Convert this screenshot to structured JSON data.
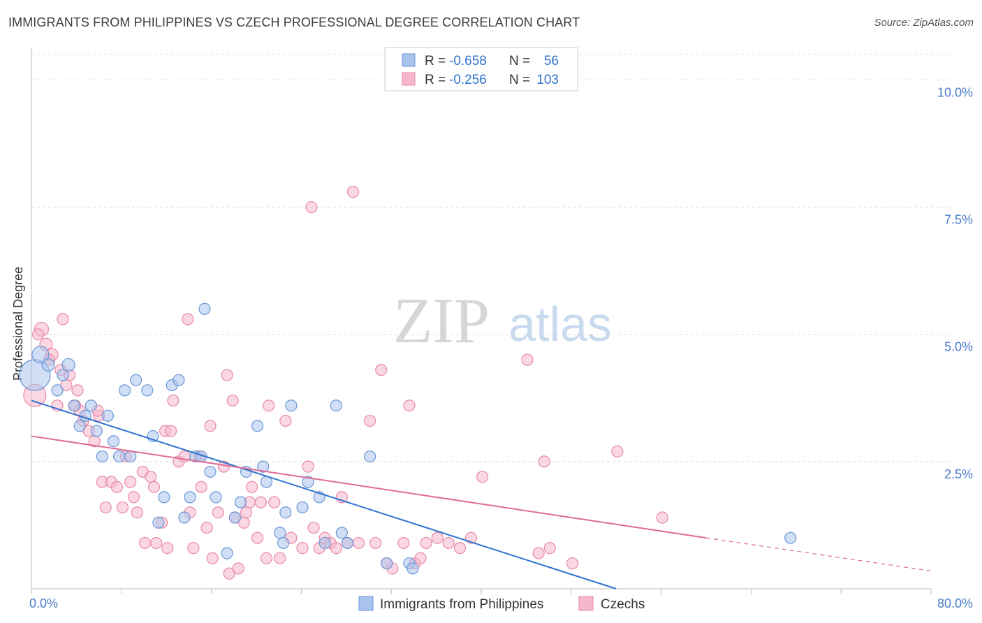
{
  "title": "IMMIGRANTS FROM PHILIPPINES VS CZECH PROFESSIONAL DEGREE CORRELATION CHART",
  "source": "Source: ZipAtlas.com",
  "watermark": {
    "zip": "ZIP",
    "atlas": "atlas"
  },
  "colors": {
    "blue_fill": "#a9c4ec",
    "blue_stroke": "#6b96d6",
    "blue_line": "#2f72d0",
    "pink_fill": "#f5b7ca",
    "pink_stroke": "#e88aa7",
    "pink_line": "#e06a93",
    "axis_text": "#4a7cc9",
    "grid": "#dddddd"
  },
  "legend": {
    "rows": [
      {
        "r_label": "R = ",
        "r_value": "-0.658",
        "n_label": "N = ",
        "n_value": " 56"
      },
      {
        "r_label": "R = ",
        "r_value": "-0.256",
        "n_label": "N = ",
        "n_value": "103"
      }
    ]
  },
  "chart_data": {
    "type": "scatter",
    "ylabel": "Professional Degree",
    "xlim": [
      0,
      80
    ],
    "ylim": [
      0,
      10.5
    ],
    "x_tick_labels": [
      "0.0%",
      "80.0%"
    ],
    "y_ticks": [
      2.5,
      5.0,
      7.5,
      10.0
    ],
    "y_tick_labels": [
      "2.5%",
      "5.0%",
      "7.5%",
      "10.0%"
    ],
    "grid": true,
    "legend_position": "top-center",
    "series": [
      {
        "name": "Immigrants from Philippines",
        "color": "blue",
        "trend": {
          "x0": 0,
          "y0": 3.7,
          "x1": 52,
          "y1": 0.0
        },
        "points": [
          [
            0.3,
            4.2,
            22
          ],
          [
            0.8,
            4.6,
            12
          ],
          [
            1.5,
            4.4,
            9
          ],
          [
            2.3,
            3.9,
            8
          ],
          [
            2.8,
            4.2,
            8
          ],
          [
            3.3,
            4.4,
            9
          ],
          [
            3.8,
            3.6,
            8
          ],
          [
            4.3,
            3.2,
            8
          ],
          [
            4.8,
            3.4,
            8
          ],
          [
            5.3,
            3.6,
            8
          ],
          [
            5.8,
            3.1,
            8
          ],
          [
            6.3,
            2.6,
            8
          ],
          [
            6.8,
            3.4,
            8
          ],
          [
            7.3,
            2.9,
            8
          ],
          [
            7.8,
            2.6,
            8
          ],
          [
            8.3,
            3.9,
            8
          ],
          [
            8.8,
            2.6,
            8
          ],
          [
            9.3,
            4.1,
            8
          ],
          [
            10.3,
            3.9,
            8
          ],
          [
            10.8,
            3.0,
            8
          ],
          [
            11.3,
            1.3,
            8
          ],
          [
            11.8,
            1.8,
            8
          ],
          [
            12.5,
            4.0,
            8
          ],
          [
            13.1,
            4.1,
            8
          ],
          [
            13.6,
            1.4,
            8
          ],
          [
            14.1,
            1.8,
            8
          ],
          [
            14.6,
            2.6,
            8
          ],
          [
            15.1,
            2.6,
            8
          ],
          [
            15.4,
            5.5,
            8
          ],
          [
            15.9,
            2.3,
            8
          ],
          [
            16.4,
            1.8,
            8
          ],
          [
            17.4,
            0.7,
            8
          ],
          [
            18.1,
            1.4,
            8
          ],
          [
            18.6,
            1.7,
            8
          ],
          [
            19.1,
            2.3,
            8
          ],
          [
            20.1,
            3.2,
            8
          ],
          [
            20.6,
            2.4,
            8
          ],
          [
            20.9,
            2.1,
            8
          ],
          [
            22.1,
            1.1,
            8
          ],
          [
            22.4,
            0.9,
            8
          ],
          [
            22.6,
            1.5,
            8
          ],
          [
            23.1,
            3.6,
            8
          ],
          [
            24.1,
            1.6,
            8
          ],
          [
            24.6,
            2.1,
            8
          ],
          [
            25.6,
            1.8,
            8
          ],
          [
            26.1,
            0.9,
            8
          ],
          [
            27.1,
            3.6,
            8
          ],
          [
            27.6,
            1.1,
            8
          ],
          [
            28.1,
            0.9,
            8
          ],
          [
            30.1,
            2.6,
            8
          ],
          [
            31.6,
            0.5,
            8
          ],
          [
            33.6,
            0.5,
            8
          ],
          [
            33.9,
            0.4,
            8
          ],
          [
            67.5,
            1.0,
            8
          ]
        ]
      },
      {
        "name": "Czechs",
        "color": "pink",
        "trend": {
          "x0": 0,
          "y0": 3.0,
          "x1": 60,
          "y1": 1.0,
          "dash_to_x": 80,
          "dash_to_y": 0.35
        },
        "points": [
          [
            0.3,
            3.8,
            16
          ],
          [
            0.9,
            5.1,
            10
          ],
          [
            1.3,
            4.8,
            9
          ],
          [
            1.8,
            4.6,
            9
          ],
          [
            2.3,
            3.6,
            8
          ],
          [
            2.8,
            5.3,
            8
          ],
          [
            3.1,
            4.0,
            8
          ],
          [
            3.4,
            4.2,
            8
          ],
          [
            3.9,
            3.6,
            8
          ],
          [
            4.3,
            3.5,
            8
          ],
          [
            4.6,
            3.3,
            8
          ],
          [
            5.1,
            3.1,
            8
          ],
          [
            5.6,
            2.9,
            8
          ],
          [
            6.0,
            3.4,
            8
          ],
          [
            6.3,
            2.1,
            8
          ],
          [
            6.6,
            1.6,
            8
          ],
          [
            7.1,
            2.1,
            8
          ],
          [
            7.6,
            2.0,
            8
          ],
          [
            8.1,
            1.6,
            8
          ],
          [
            8.4,
            2.6,
            8
          ],
          [
            8.8,
            2.1,
            8
          ],
          [
            9.1,
            1.8,
            8
          ],
          [
            9.4,
            1.5,
            8
          ],
          [
            9.9,
            2.3,
            8
          ],
          [
            10.1,
            0.9,
            8
          ],
          [
            10.6,
            2.2,
            8
          ],
          [
            10.9,
            2.0,
            8
          ],
          [
            11.1,
            0.9,
            8
          ],
          [
            11.6,
            1.3,
            8
          ],
          [
            11.9,
            3.1,
            8
          ],
          [
            12.1,
            0.8,
            8
          ],
          [
            12.4,
            3.1,
            8
          ],
          [
            12.6,
            3.7,
            8
          ],
          [
            13.1,
            2.5,
            8
          ],
          [
            13.6,
            2.6,
            8
          ],
          [
            13.9,
            5.3,
            8
          ],
          [
            14.1,
            1.5,
            8
          ],
          [
            14.4,
            0.8,
            8
          ],
          [
            14.9,
            2.6,
            8
          ],
          [
            15.1,
            2.0,
            8
          ],
          [
            15.6,
            1.2,
            8
          ],
          [
            15.9,
            3.2,
            8
          ],
          [
            16.1,
            0.6,
            8
          ],
          [
            16.6,
            1.5,
            8
          ],
          [
            17.1,
            2.4,
            8
          ],
          [
            17.4,
            4.2,
            8
          ],
          [
            17.6,
            0.3,
            8
          ],
          [
            17.9,
            3.7,
            8
          ],
          [
            18.1,
            1.4,
            8
          ],
          [
            18.4,
            0.4,
            8
          ],
          [
            18.9,
            1.3,
            8
          ],
          [
            19.1,
            1.5,
            8
          ],
          [
            19.4,
            1.7,
            8
          ],
          [
            19.6,
            2.0,
            8
          ],
          [
            20.1,
            1.0,
            8
          ],
          [
            20.4,
            1.7,
            8
          ],
          [
            20.9,
            0.6,
            8
          ],
          [
            21.1,
            3.6,
            8
          ],
          [
            21.6,
            1.7,
            8
          ],
          [
            22.1,
            0.6,
            8
          ],
          [
            22.6,
            3.3,
            8
          ],
          [
            23.1,
            1.0,
            8
          ],
          [
            24.1,
            0.8,
            8
          ],
          [
            24.6,
            2.4,
            8
          ],
          [
            24.9,
            7.5,
            8
          ],
          [
            25.1,
            1.2,
            8
          ],
          [
            25.6,
            0.8,
            8
          ],
          [
            26.1,
            1.0,
            8
          ],
          [
            26.6,
            0.9,
            8
          ],
          [
            27.1,
            0.8,
            8
          ],
          [
            27.6,
            1.8,
            8
          ],
          [
            28.1,
            0.9,
            8
          ],
          [
            28.6,
            7.8,
            8
          ],
          [
            29.1,
            0.9,
            8
          ],
          [
            30.1,
            3.3,
            8
          ],
          [
            30.6,
            0.9,
            8
          ],
          [
            31.1,
            4.3,
            8
          ],
          [
            31.6,
            0.5,
            8
          ],
          [
            32.1,
            0.4,
            8
          ],
          [
            33.1,
            0.9,
            8
          ],
          [
            33.6,
            3.6,
            8
          ],
          [
            34.1,
            0.5,
            8
          ],
          [
            34.6,
            0.6,
            8
          ],
          [
            35.1,
            0.9,
            8
          ],
          [
            36.1,
            1.0,
            8
          ],
          [
            37.1,
            0.9,
            8
          ],
          [
            38.1,
            0.8,
            8
          ],
          [
            39.1,
            1.0,
            8
          ],
          [
            40.1,
            2.2,
            8
          ],
          [
            44.1,
            4.5,
            8
          ],
          [
            45.1,
            0.7,
            8
          ],
          [
            45.6,
            2.5,
            8
          ],
          [
            46.1,
            0.8,
            8
          ],
          [
            48.1,
            0.5,
            8
          ],
          [
            52.1,
            2.7,
            8
          ],
          [
            56.1,
            1.4,
            8
          ],
          [
            0.6,
            5.0,
            8
          ],
          [
            1.6,
            4.5,
            8
          ],
          [
            2.6,
            4.3,
            8
          ],
          [
            4.1,
            3.9,
            8
          ],
          [
            5.9,
            3.5,
            8
          ]
        ]
      }
    ]
  },
  "bottom_legend": [
    {
      "label": "Immigrants from Philippines",
      "color": "blue"
    },
    {
      "label": "Czechs",
      "color": "pink"
    }
  ]
}
